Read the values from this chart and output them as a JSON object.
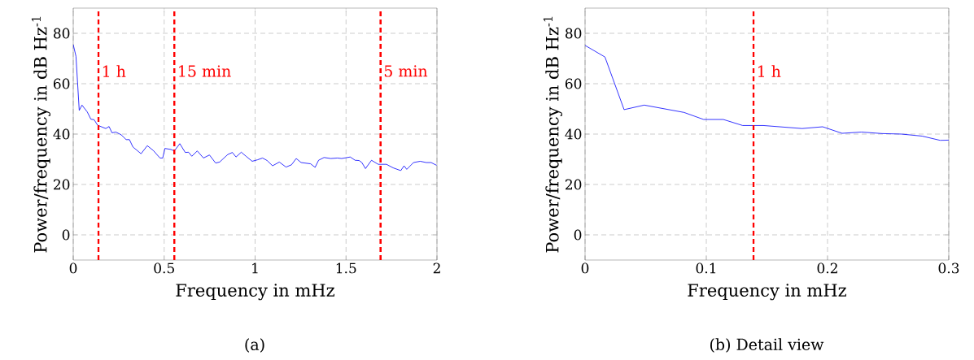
{
  "chart_data": [
    {
      "type": "line",
      "xlabel": "Frequency in mHz",
      "ylabel": "Power/frequency in dB Hz$^{-1}$",
      "annotations": [
        "(a)"
      ],
      "xlim": [
        0,
        2
      ],
      "ylim": [
        -10,
        90
      ],
      "xticks": [
        0,
        0.5,
        1,
        1.5,
        2
      ],
      "yticks": [
        0,
        20,
        40,
        60,
        80
      ],
      "grid": true,
      "line_style": "solid",
      "series": [
        {
          "color": "#0000ff",
          "x": [
            0,
            0.015,
            0.033,
            0.048,
            0.077,
            0.097,
            0.115,
            0.134,
            0.179,
            0.197,
            0.213,
            0.234,
            0.264,
            0.291,
            0.309,
            0.328,
            0.373,
            0.407,
            0.44,
            0.477,
            0.492,
            0.504,
            0.537,
            0.556,
            0.586,
            0.616,
            0.634,
            0.652,
            0.682,
            0.716,
            0.749,
            0.783,
            0.805,
            0.85,
            0.875,
            0.895,
            0.924,
            0.95,
            0.984,
            1.014,
            1.041,
            1.066,
            1.096,
            1.133,
            1.17,
            1.2,
            1.226,
            1.253,
            1.305,
            1.33,
            1.349,
            1.379,
            1.416,
            1.453,
            1.476,
            1.523,
            1.55,
            1.572,
            1.587,
            1.607,
            1.64,
            1.677,
            1.722,
            1.759,
            1.801,
            1.819,
            1.834,
            1.871,
            1.908,
            1.941,
            1.968,
            1.998
          ],
          "values": [
            75.5,
            70.9,
            49.4,
            51.5,
            48.8,
            45.9,
            45.7,
            43.5,
            42.2,
            43.0,
            40.5,
            40.8,
            39.7,
            37.8,
            37.8,
            34.9,
            32.2,
            35.4,
            33.5,
            30.5,
            30.5,
            34.3,
            33.9,
            33.3,
            36.2,
            32.7,
            32.8,
            31.2,
            33.3,
            30.5,
            31.7,
            28.5,
            28.9,
            31.9,
            32.7,
            30.9,
            32.8,
            31.2,
            29.2,
            29.8,
            30.5,
            29.5,
            27.4,
            28.9,
            26.9,
            27.8,
            30.3,
            28.7,
            28.2,
            26.8,
            29.6,
            30.7,
            30.3,
            30.5,
            30.3,
            30.9,
            29.6,
            29.5,
            28.7,
            26.3,
            29.6,
            28.0,
            28.0,
            26.6,
            25.5,
            27.4,
            26.0,
            28.7,
            29.2,
            28.7,
            28.7,
            27.6
          ]
        }
      ],
      "ref_lines": [
        {
          "axis": "x",
          "value": 0.139,
          "label": "1 h",
          "color": "#ff0000",
          "line_style": "dashed"
        },
        {
          "axis": "x",
          "value": 0.556,
          "label": "15 min",
          "color": "#ff0000",
          "line_style": "dashed"
        },
        {
          "axis": "x",
          "value": 1.69,
          "label": "5 min",
          "color": "#ff0000",
          "line_style": "dashed"
        }
      ]
    },
    {
      "type": "line",
      "xlabel": "Frequency in mHz",
      "ylabel": "Power/frequency in dB Hz$^{-1}$",
      "annotations": [
        "(b) Detail view"
      ],
      "xlim": [
        0,
        0.3
      ],
      "ylim": [
        -10,
        90
      ],
      "xticks": [
        0,
        0.1,
        0.2,
        0.3
      ],
      "yticks": [
        0,
        20,
        40,
        60,
        80
      ],
      "grid": true,
      "line_style": "solid",
      "series": [
        {
          "color": "#0000ff",
          "x": [
            0,
            0.0164,
            0.0322,
            0.0488,
            0.0816,
            0.0978,
            0.114,
            0.13,
            0.147,
            0.179,
            0.196,
            0.212,
            0.228,
            0.245,
            0.261,
            0.278,
            0.293,
            0.3
          ],
          "values": [
            75.2,
            70.6,
            49.7,
            51.5,
            48.6,
            45.8,
            45.8,
            43.4,
            43.4,
            42.2,
            42.9,
            40.3,
            40.8,
            40.2,
            40.0,
            39.2,
            37.5,
            37.6
          ]
        }
      ],
      "ref_lines": [
        {
          "axis": "x",
          "value": 0.139,
          "label": "1 h",
          "color": "#ff0000",
          "line_style": "dashed"
        }
      ]
    }
  ]
}
